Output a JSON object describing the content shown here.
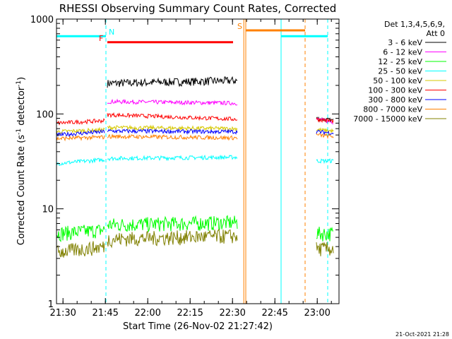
{
  "chart_data": {
    "type": "line",
    "title": "RHESSI Observing Summary Count Rates, Corrected",
    "xlabel": "Start Time (26-Nov-02 21:27:42)",
    "ylabel_main": "Corrected Count Rate (s",
    "ylabel_sup1": "-1",
    "ylabel_mid": " detector",
    "ylabel_sup2": "-1",
    "ylabel_end": ")",
    "y_scale": "log",
    "ylim": [
      1,
      1000
    ],
    "xlim_minutes_after_2127_42": [
      0,
      100
    ],
    "x_tick_labels": [
      "21:30",
      "21:45",
      "22:00",
      "22:15",
      "22:30",
      "22:45",
      "23:00"
    ],
    "x_tick_minutes": [
      2.3,
      17.3,
      32.3,
      47.3,
      62.3,
      77.3,
      92.3
    ],
    "y_tick_labels": [
      "1",
      "10",
      "100",
      "1000"
    ],
    "y_tick_values": [
      1,
      10,
      100,
      1000
    ],
    "legend_header_1": "Det 1,3,4,5,6,9,",
    "legend_header_2": "Att 0",
    "legend_position": "top-right",
    "series": [
      {
        "name": "3 - 6 keV",
        "color": "#000000",
        "segments": [
          [
            18,
            64,
            210,
            225
          ],
          [
            92,
            98,
            90,
            85
          ]
        ]
      },
      {
        "name": "6 - 12 keV",
        "color": "#ff00ff",
        "segments": [
          [
            18,
            64,
            135,
            130
          ],
          [
            92,
            98,
            88,
            82
          ]
        ]
      },
      {
        "name": "12 - 25 keV",
        "color": "#00ff00",
        "segments": [
          [
            0,
            17,
            5.5,
            6
          ],
          [
            18,
            64,
            6.8,
            7.2
          ],
          [
            92,
            98,
            5.5,
            5.5
          ]
        ]
      },
      {
        "name": "25 - 50 keV",
        "color": "#00ffff",
        "segments": [
          [
            0,
            17,
            30,
            33
          ],
          [
            18,
            64,
            34,
            35
          ],
          [
            92,
            98,
            32,
            32
          ]
        ]
      },
      {
        "name": "50 - 100 keV",
        "color": "#d6c800",
        "segments": [
          [
            0,
            17,
            65,
            68
          ],
          [
            18,
            64,
            72,
            70
          ],
          [
            92,
            98,
            68,
            66
          ]
        ]
      },
      {
        "name": "100 - 300 keV",
        "color": "#ff0000",
        "segments": [
          [
            0,
            17,
            80,
            85
          ],
          [
            18,
            64,
            98,
            88
          ],
          [
            92,
            98,
            88,
            84
          ]
        ]
      },
      {
        "name": "300 - 800 keV",
        "color": "#0000ff",
        "segments": [
          [
            0,
            17,
            60,
            65
          ],
          [
            18,
            64,
            66,
            65
          ],
          [
            92,
            98,
            65,
            63
          ]
        ]
      },
      {
        "name": "800 - 7000 keV",
        "color": "#ff8000",
        "segments": [
          [
            0,
            17,
            55,
            57
          ],
          [
            18,
            64,
            58,
            56
          ],
          [
            92,
            98,
            60,
            58
          ]
        ]
      },
      {
        "name": "7000 - 15000 keV",
        "color": "#808000",
        "segments": [
          [
            0,
            17,
            3.5,
            4
          ],
          [
            18,
            64,
            4.8,
            5.2
          ],
          [
            92,
            98,
            3.8,
            3.8
          ]
        ]
      }
    ],
    "annotations": [
      {
        "label": "N",
        "color": "#00ffff",
        "x_start": 0,
        "x_end": 17.5,
        "y": 660
      },
      {
        "label": "",
        "color": "#00ffff",
        "x_start": 79.5,
        "x_end": 96,
        "y": 660
      },
      {
        "label": "F",
        "color": "#ff0000",
        "x_start": 18,
        "x_end": 62.5,
        "y": 570
      },
      {
        "label": "S",
        "color": "#ff8000",
        "x_start": 67,
        "x_end": 88,
        "y": 760
      }
    ],
    "vertical_lines": [
      {
        "x": 0,
        "color": "#00ffff",
        "dashed": false
      },
      {
        "x": 17.5,
        "color": "#00ffff",
        "dashed": true
      },
      {
        "x": 66.3,
        "color": "#ff8000",
        "dashed": false
      },
      {
        "x": 67,
        "color": "#ff8000",
        "dashed": false
      },
      {
        "x": 79.5,
        "color": "#00ffff",
        "dashed": false
      },
      {
        "x": 88,
        "color": "#ff8000",
        "dashed": true
      },
      {
        "x": 96,
        "color": "#00ffff",
        "dashed": true
      }
    ]
  },
  "footer_stamp": "21-Oct-2021 21:28",
  "colors": {
    "background": "#ffffff",
    "axis": "#000000"
  }
}
